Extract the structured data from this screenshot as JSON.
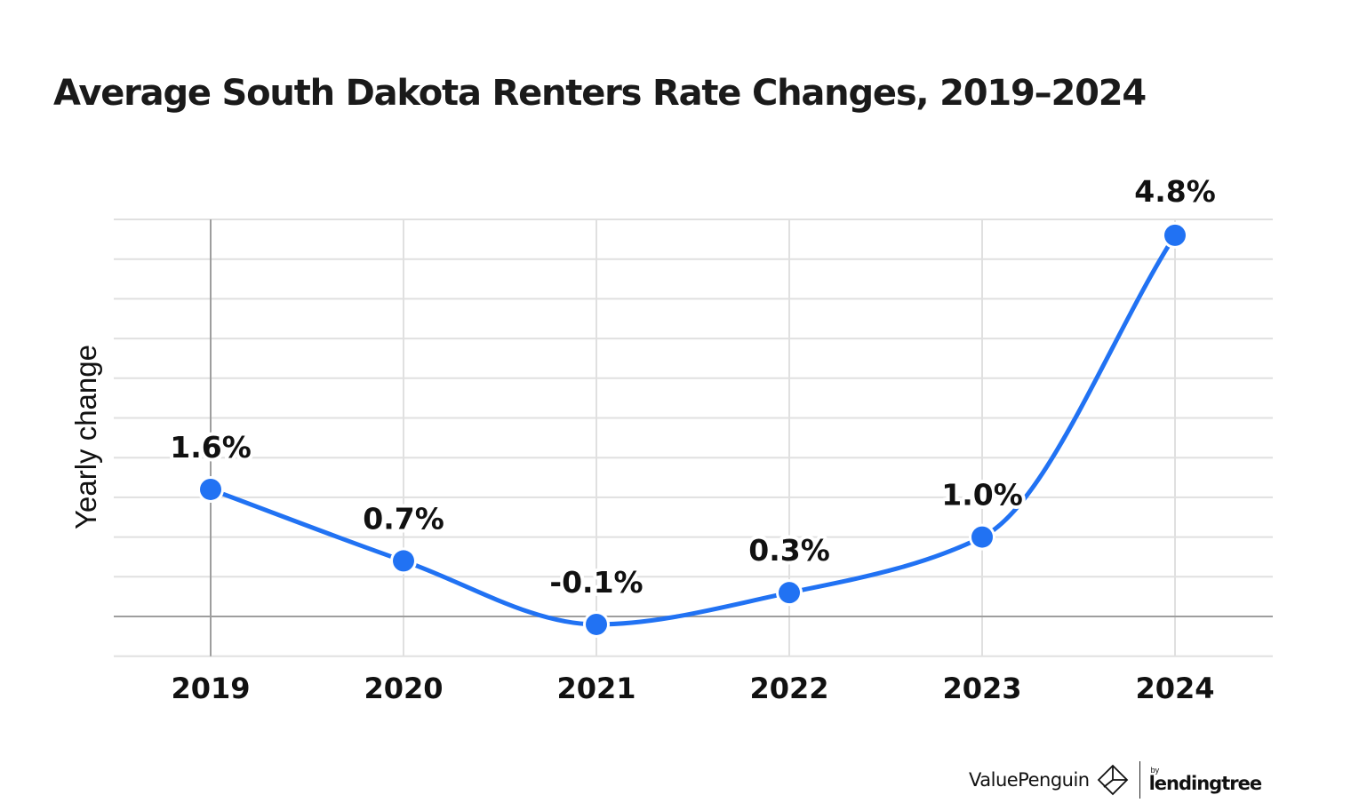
{
  "header": {
    "title": "Average South Dakota Renters Rate Changes, 2019–2024"
  },
  "axes": {
    "ylabel": "Yearly change",
    "xticks": [
      "2019",
      "2020",
      "2021",
      "2022",
      "2023",
      "2024"
    ]
  },
  "data_labels": [
    "1.6%",
    "0.7%",
    "-0.1%",
    "0.3%",
    "1.0%",
    "4.8%"
  ],
  "footer": {
    "brand": "ValuePenguin",
    "by": "by",
    "partner": "lendingtree"
  },
  "colors": {
    "line": "#2172F3",
    "grid": "#E0E0E0",
    "axis": "#9E9E9E",
    "text": "#111111"
  },
  "chart_data": {
    "type": "line",
    "title": "Average South Dakota Renters Rate Changes, 2019–2024",
    "xlabel": "",
    "ylabel": "Yearly change",
    "categories": [
      "2019",
      "2020",
      "2021",
      "2022",
      "2023",
      "2024"
    ],
    "series": [
      {
        "name": "Yearly change (%)",
        "values": [
          1.6,
          0.7,
          -0.1,
          0.3,
          1.0,
          4.8
        ]
      }
    ],
    "data_labels": [
      "1.6%",
      "0.7%",
      "-0.1%",
      "0.3%",
      "1.0%",
      "4.8%"
    ],
    "ylim": [
      -0.5,
      5.0
    ],
    "ytick_step": 0.5,
    "ytick_labels_visible": false,
    "grid": true,
    "smooth": true,
    "legend": "none"
  }
}
